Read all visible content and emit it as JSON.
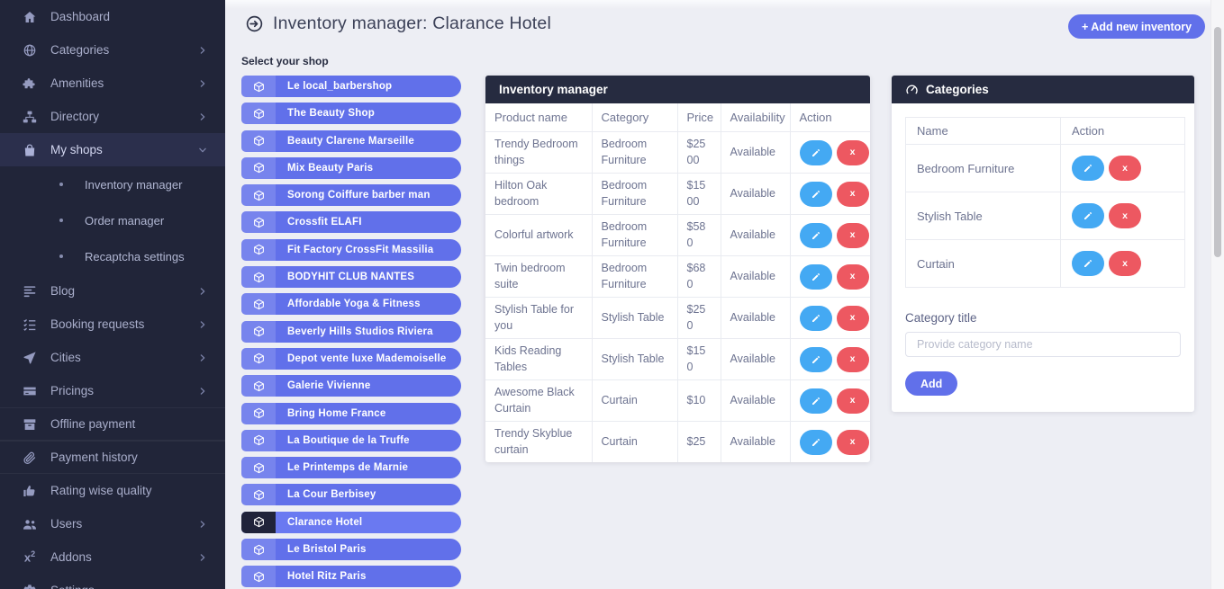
{
  "colors": {
    "sidebar_bg": "#212539",
    "content_bg": "#edeef4",
    "accent_blue": "#6170ea",
    "panel_header_bg": "#262b40",
    "edit_blue": "#44a9f3",
    "delete_red": "#ed5861"
  },
  "sidebar": {
    "items": [
      {
        "label": "Dashboard",
        "icon": "home",
        "chevron": "none"
      },
      {
        "label": "Categories",
        "icon": "globe",
        "chevron": "right"
      },
      {
        "label": "Amenities",
        "icon": "puzzle",
        "chevron": "right"
      },
      {
        "label": "Directory",
        "icon": "sitemap",
        "chevron": "right"
      },
      {
        "label": "My shops",
        "icon": "shopping-bag",
        "chevron": "down",
        "active": true,
        "submenu": [
          "Inventory manager",
          "Order manager",
          "Recaptcha settings"
        ]
      },
      {
        "label": "Blog",
        "icon": "blog-lines",
        "chevron": "right"
      },
      {
        "label": "Booking requests",
        "icon": "task-list",
        "chevron": "right"
      },
      {
        "label": "Cities",
        "icon": "paper-plane",
        "chevron": "right"
      },
      {
        "label": "Pricings",
        "icon": "credit-card",
        "chevron": "right"
      },
      {
        "label": "Offline payment",
        "icon": "archive-box",
        "chevron": "none",
        "separated": true
      },
      {
        "label": "Payment history",
        "icon": "paperclip",
        "chevron": "none",
        "separated": true
      },
      {
        "label": "Rating wise quality",
        "icon": "thumbs-up",
        "chevron": "none"
      },
      {
        "label": "Users",
        "icon": "users",
        "chevron": "right"
      },
      {
        "label": "Addons",
        "icon": "superscript-x2",
        "chevron": "right"
      },
      {
        "label": "Settings",
        "icon": "gear",
        "chevron": "none"
      }
    ]
  },
  "header": {
    "title": "Inventory manager: Clarance Hotel",
    "add_button": "+ Add new inventory"
  },
  "shop_list": {
    "label": "Select your shop",
    "selected": "Clarance Hotel",
    "shops": [
      "Le local_barbershop",
      "The Beauty Shop",
      "Beauty Clarene Marseille",
      "Mix Beauty Paris",
      "Sorong Coiffure barber man",
      "Crossfit ELAFI",
      "Fit Factory CrossFit Massilia",
      "BODYHIT CLUB NANTES",
      "Affordable Yoga & Fitness",
      "Beverly Hills Studios Riviera",
      "Depot vente luxe Mademoiselle",
      "Galerie Vivienne",
      "Bring Home France",
      "La Boutique de la Truffe",
      "Le Printemps de Marnie",
      "La Cour Berbisey",
      "Clarance Hotel",
      "Le Bristol Paris",
      "Hotel Ritz Paris"
    ]
  },
  "inventory": {
    "title": "Inventory manager",
    "columns": [
      "Product name",
      "Category",
      "Price",
      "Availability",
      "Action"
    ],
    "rows": [
      {
        "product": "Trendy Bedroom things",
        "category": "Bedroom Furniture",
        "price": "$2500",
        "availability": "Available"
      },
      {
        "product": "Hilton Oak bedroom",
        "category": "Bedroom Furniture",
        "price": "$1500",
        "availability": "Available"
      },
      {
        "product": "Colorful artwork",
        "category": "Bedroom Furniture",
        "price": "$580",
        "availability": "Available"
      },
      {
        "product": "Twin bedroom suite",
        "category": "Bedroom Furniture",
        "price": "$680",
        "availability": "Available"
      },
      {
        "product": "Stylish Table for you",
        "category": "Stylish Table",
        "price": "$250",
        "availability": "Available"
      },
      {
        "product": "Kids Reading Tables",
        "category": "Stylish Table",
        "price": "$150",
        "availability": "Available"
      },
      {
        "product": "Awesome Black Curtain",
        "category": "Curtain",
        "price": "$10",
        "availability": "Available"
      },
      {
        "product": "Trendy Skyblue curtain",
        "category": "Curtain",
        "price": "$25",
        "availability": "Available"
      }
    ]
  },
  "categories_panel": {
    "title": "Categories",
    "columns": [
      "Name",
      "Action"
    ],
    "rows": [
      "Bedroom Furniture",
      "Stylish Table",
      "Curtain"
    ],
    "form": {
      "label": "Category title",
      "placeholder": "Provide category name",
      "add_button": "Add"
    }
  }
}
